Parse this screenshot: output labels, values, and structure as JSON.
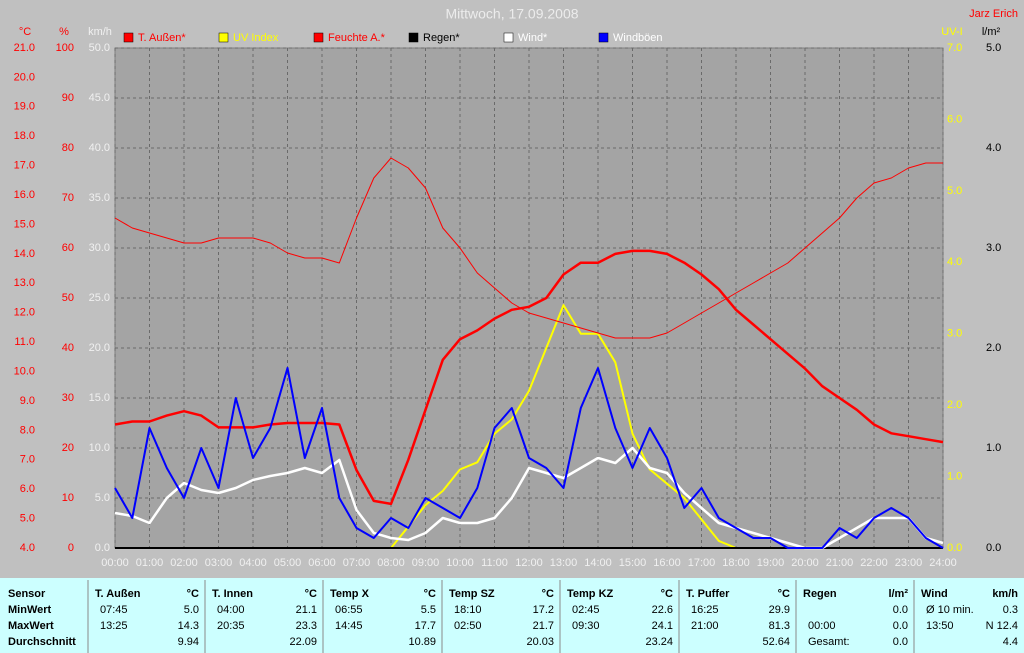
{
  "header": {
    "title": "Mittwoch, 17.09.2008",
    "author": "Jarz Erich"
  },
  "chart_data": {
    "type": "line",
    "x": [
      0,
      0.5,
      1,
      1.5,
      2,
      2.5,
      3,
      3.5,
      4,
      4.5,
      5,
      5.5,
      6,
      6.5,
      7,
      7.5,
      8,
      8.5,
      9,
      9.5,
      10,
      10.5,
      11,
      11.5,
      12,
      12.5,
      13,
      13.5,
      14,
      14.5,
      15,
      15.5,
      16,
      16.5,
      17,
      17.5,
      18,
      18.5,
      19,
      19.5,
      20,
      20.5,
      21,
      21.5,
      22,
      22.5,
      23,
      23.5,
      24
    ],
    "xlim": [
      0,
      24
    ],
    "xticks": [
      {
        "value": 0,
        "label": "00:00"
      },
      {
        "value": 1,
        "label": "01:00"
      },
      {
        "value": 2,
        "label": "02:00"
      },
      {
        "value": 3,
        "label": "03:00"
      },
      {
        "value": 4,
        "label": "04:00"
      },
      {
        "value": 5,
        "label": "05:00"
      },
      {
        "value": 6,
        "label": "06:00"
      },
      {
        "value": 7,
        "label": "07:00"
      },
      {
        "value": 8,
        "label": "08:00"
      },
      {
        "value": 9,
        "label": "09:00"
      },
      {
        "value": 10,
        "label": "10:00"
      },
      {
        "value": 11,
        "label": "11:00"
      },
      {
        "value": 12,
        "label": "12:00"
      },
      {
        "value": 13,
        "label": "13:00"
      },
      {
        "value": 14,
        "label": "14:00"
      },
      {
        "value": 15,
        "label": "15:00"
      },
      {
        "value": 16,
        "label": "16:00"
      },
      {
        "value": 17,
        "label": "17:00"
      },
      {
        "value": 18,
        "label": "18:00"
      },
      {
        "value": 19,
        "label": "19:00"
      },
      {
        "value": 20,
        "label": "20:00"
      },
      {
        "value": 21,
        "label": "21:00"
      },
      {
        "value": 22,
        "label": "22:00"
      },
      {
        "value": 23,
        "label": "23:00"
      },
      {
        "value": 24,
        "label": "24:00"
      }
    ],
    "grid": true,
    "y_axes": [
      {
        "unit": "°C",
        "color": "#ff0000",
        "side": "left",
        "ylim": [
          4,
          21
        ],
        "yticks": [
          {
            "value": 4,
            "label": "4.0"
          },
          {
            "value": 5,
            "label": "5.0"
          },
          {
            "value": 6,
            "label": "6.0"
          },
          {
            "value": 7,
            "label": "7.0"
          },
          {
            "value": 8,
            "label": "8.0"
          },
          {
            "value": 9,
            "label": "9.0"
          },
          {
            "value": 10,
            "label": "10.0"
          },
          {
            "value": 11,
            "label": "11.0"
          },
          {
            "value": 12,
            "label": "12.0"
          },
          {
            "value": 13,
            "label": "13.0"
          },
          {
            "value": 14,
            "label": "14.0"
          },
          {
            "value": 15,
            "label": "15.0"
          },
          {
            "value": 16,
            "label": "16.0"
          },
          {
            "value": 17,
            "label": "17.0"
          },
          {
            "value": 18,
            "label": "18.0"
          },
          {
            "value": 19,
            "label": "19.0"
          },
          {
            "value": 20,
            "label": "20.0"
          },
          {
            "value": 21,
            "label": "21.0"
          }
        ]
      },
      {
        "unit": "%",
        "color": "#ff0000",
        "side": "left",
        "ylim": [
          0,
          100
        ],
        "yticks": [
          0,
          10,
          20,
          30,
          40,
          50,
          60,
          70,
          80,
          90,
          100
        ]
      },
      {
        "unit": "km/h",
        "color": "#f0f0f0",
        "side": "left",
        "grid": true,
        "ylim": [
          0,
          50
        ],
        "yticks": [
          {
            "value": 0,
            "label": "0.0"
          },
          {
            "value": 5,
            "label": "5.0"
          },
          {
            "value": 10,
            "label": "10.0"
          },
          {
            "value": 15,
            "label": "15.0"
          },
          {
            "value": 20,
            "label": "20.0"
          },
          {
            "value": 25,
            "label": "25.0"
          },
          {
            "value": 30,
            "label": "30.0"
          },
          {
            "value": 35,
            "label": "35.0"
          },
          {
            "value": 40,
            "label": "40.0"
          },
          {
            "value": 45,
            "label": "45.0"
          },
          {
            "value": 50,
            "label": "50.0"
          }
        ]
      },
      {
        "unit": "UV-I",
        "color": "#ffff00",
        "side": "right",
        "ylim": [
          0,
          7
        ],
        "yticks": [
          {
            "value": 0,
            "label": "0.0"
          },
          {
            "value": 1,
            "label": "1.0"
          },
          {
            "value": 2,
            "label": "2.0"
          },
          {
            "value": 3,
            "label": "3.0"
          },
          {
            "value": 4,
            "label": "4.0"
          },
          {
            "value": 5,
            "label": "5.0"
          },
          {
            "value": 6,
            "label": "6.0"
          },
          {
            "value": 7,
            "label": "7.0"
          }
        ]
      },
      {
        "unit": "l/m²",
        "color": "#000000",
        "side": "right",
        "ylim": [
          0,
          5
        ],
        "yticks": [
          {
            "value": 0,
            "label": "0.0"
          },
          {
            "value": 1,
            "label": "1.0"
          },
          {
            "value": 2,
            "label": "2.0"
          },
          {
            "value": 3,
            "label": "3.0"
          },
          {
            "value": 4,
            "label": "4.0"
          },
          {
            "value": 5,
            "label": "5.0"
          }
        ]
      }
    ],
    "series": [
      {
        "name": "T. Außen*",
        "color": "#ff0000",
        "label_color": "#ff0000",
        "width": 2.5,
        "axis": "°C",
        "values": [
          8.2,
          8.3,
          8.3,
          8.5,
          8.65,
          8.5,
          8.1,
          8.1,
          8.1,
          8.2,
          8.25,
          8.25,
          8.25,
          8.2,
          6.65,
          5.6,
          5.5,
          7.0,
          8.7,
          10.4,
          11.1,
          11.4,
          11.8,
          12.1,
          12.2,
          12.5,
          13.3,
          13.7,
          13.7,
          14.0,
          14.1,
          14.1,
          14.0,
          13.7,
          13.3,
          12.8,
          12.1,
          11.6,
          11.1,
          10.6,
          10.1,
          9.5,
          9.1,
          8.7,
          8.2,
          7.9,
          7.8,
          7.7,
          7.6
        ]
      },
      {
        "name": "UV Index",
        "color": "#ffff00",
        "label_color": "#ffff00",
        "width": 2,
        "axis": "UV-I",
        "values": [
          0,
          0,
          0,
          0,
          0,
          0,
          0,
          0,
          0,
          0,
          0,
          0,
          0,
          0,
          0,
          0,
          0,
          0.3,
          0.6,
          0.8,
          1.1,
          1.2,
          1.6,
          1.8,
          2.2,
          2.8,
          3.4,
          3.0,
          3.0,
          2.6,
          1.6,
          1.1,
          0.9,
          0.7,
          0.4,
          0.1,
          0,
          0,
          0,
          0,
          0,
          0,
          0,
          0,
          0,
          0,
          0,
          0,
          0
        ]
      },
      {
        "name": "Feuchte A.*",
        "color": "#ff0000",
        "label_color": "#ff0000",
        "width": 1,
        "axis": "%",
        "values": [
          66,
          64,
          63,
          62,
          61,
          61,
          62,
          62,
          62,
          61,
          59,
          58,
          58,
          57,
          66,
          74,
          78,
          76,
          72,
          64,
          60,
          55,
          52,
          49,
          47,
          46,
          45,
          44,
          43,
          42,
          42,
          42,
          43,
          45,
          47,
          49,
          51,
          53,
          55,
          57,
          60,
          63,
          66,
          70,
          73,
          74,
          76,
          77,
          77
        ]
      },
      {
        "name": "Regen*",
        "color": "#000000",
        "label_color": "#000000",
        "width": 2,
        "axis": "l/m²",
        "values": [
          0,
          0,
          0,
          0,
          0,
          0,
          0,
          0,
          0,
          0,
          0,
          0,
          0,
          0,
          0,
          0,
          0,
          0,
          0,
          0,
          0,
          0,
          0,
          0,
          0,
          0,
          0,
          0,
          0,
          0,
          0,
          0,
          0,
          0,
          0,
          0,
          0,
          0,
          0,
          0,
          0,
          0,
          0,
          0,
          0,
          0,
          0,
          0,
          0
        ]
      },
      {
        "name": "Wind*",
        "color": "#ffffff",
        "label_color": "#ffffff",
        "width": 2.5,
        "axis": "km/h",
        "values": [
          3.5,
          3.2,
          2.5,
          5.0,
          6.5,
          5.8,
          5.5,
          6.0,
          6.8,
          7.2,
          7.5,
          8.0,
          7.5,
          8.8,
          3.8,
          1.5,
          1.0,
          0.8,
          1.5,
          3.0,
          2.5,
          2.5,
          3.0,
          5.0,
          8.0,
          7.5,
          7.0,
          8.0,
          9.0,
          8.5,
          10.0,
          8.0,
          7.5,
          5.5,
          4.0,
          2.5,
          2.0,
          1.5,
          1.0,
          0.5,
          0,
          0,
          1.0,
          2.0,
          3.0,
          3.0,
          3.0,
          1.0,
          0.5
        ]
      },
      {
        "name": "Windböen",
        "color": "#0000ff",
        "label_color": "#ffffff",
        "width": 2,
        "axis": "km/h",
        "values": [
          6,
          3,
          12,
          8,
          5,
          10,
          6,
          15,
          9,
          12,
          18,
          9,
          14,
          5,
          2,
          1,
          3,
          2,
          5,
          4,
          3,
          6,
          12,
          14,
          9,
          8,
          6,
          14,
          18,
          12,
          8,
          12,
          9,
          4,
          6,
          3,
          2,
          1,
          1,
          0,
          0,
          0,
          2,
          1,
          3,
          4,
          3,
          1,
          0
        ]
      }
    ]
  },
  "table": {
    "first_header": "Sensor",
    "row_labels": [
      "MinWert",
      "MaxWert",
      "Durchschnitt"
    ],
    "groups": [
      {
        "name": "T. Außen",
        "unit": "°C",
        "rows": [
          [
            "07:45",
            "5.0"
          ],
          [
            "13:25",
            "14.3"
          ],
          [
            "9.94"
          ]
        ]
      },
      {
        "name": "T. Innen",
        "unit": "°C",
        "rows": [
          [
            "04:00",
            "21.1"
          ],
          [
            "20:35",
            "23.3"
          ],
          [
            "22.09"
          ]
        ]
      },
      {
        "name": "Temp X",
        "unit": "°C",
        "rows": [
          [
            "06:55",
            "5.5"
          ],
          [
            "14:45",
            "17.7"
          ],
          [
            "10.89"
          ]
        ]
      },
      {
        "name": "Temp SZ",
        "unit": "°C",
        "rows": [
          [
            "18:10",
            "17.2"
          ],
          [
            "02:50",
            "21.7"
          ],
          [
            "20.03"
          ]
        ]
      },
      {
        "name": "Temp KZ",
        "unit": "°C",
        "rows": [
          [
            "02:45",
            "22.6"
          ],
          [
            "09:30",
            "24.1"
          ],
          [
            "23.24"
          ]
        ]
      },
      {
        "name": "T. Puffer",
        "unit": "°C",
        "rows": [
          [
            "16:25",
            "29.9"
          ],
          [
            "21:00",
            "81.3"
          ],
          [
            "52.64"
          ]
        ]
      },
      {
        "name": "Regen",
        "unit": "l/m²",
        "rows": [
          [
            "0.0"
          ],
          [
            "00:00",
            "0.0"
          ],
          [
            "Gesamt:",
            "0.0"
          ]
        ]
      },
      {
        "name": "Wind",
        "unit": "km/h",
        "rows": [
          [
            "Ø 10 min.",
            "0.3"
          ],
          [
            "13:50",
            "N 12.4"
          ],
          [
            "4.4"
          ]
        ]
      }
    ]
  }
}
